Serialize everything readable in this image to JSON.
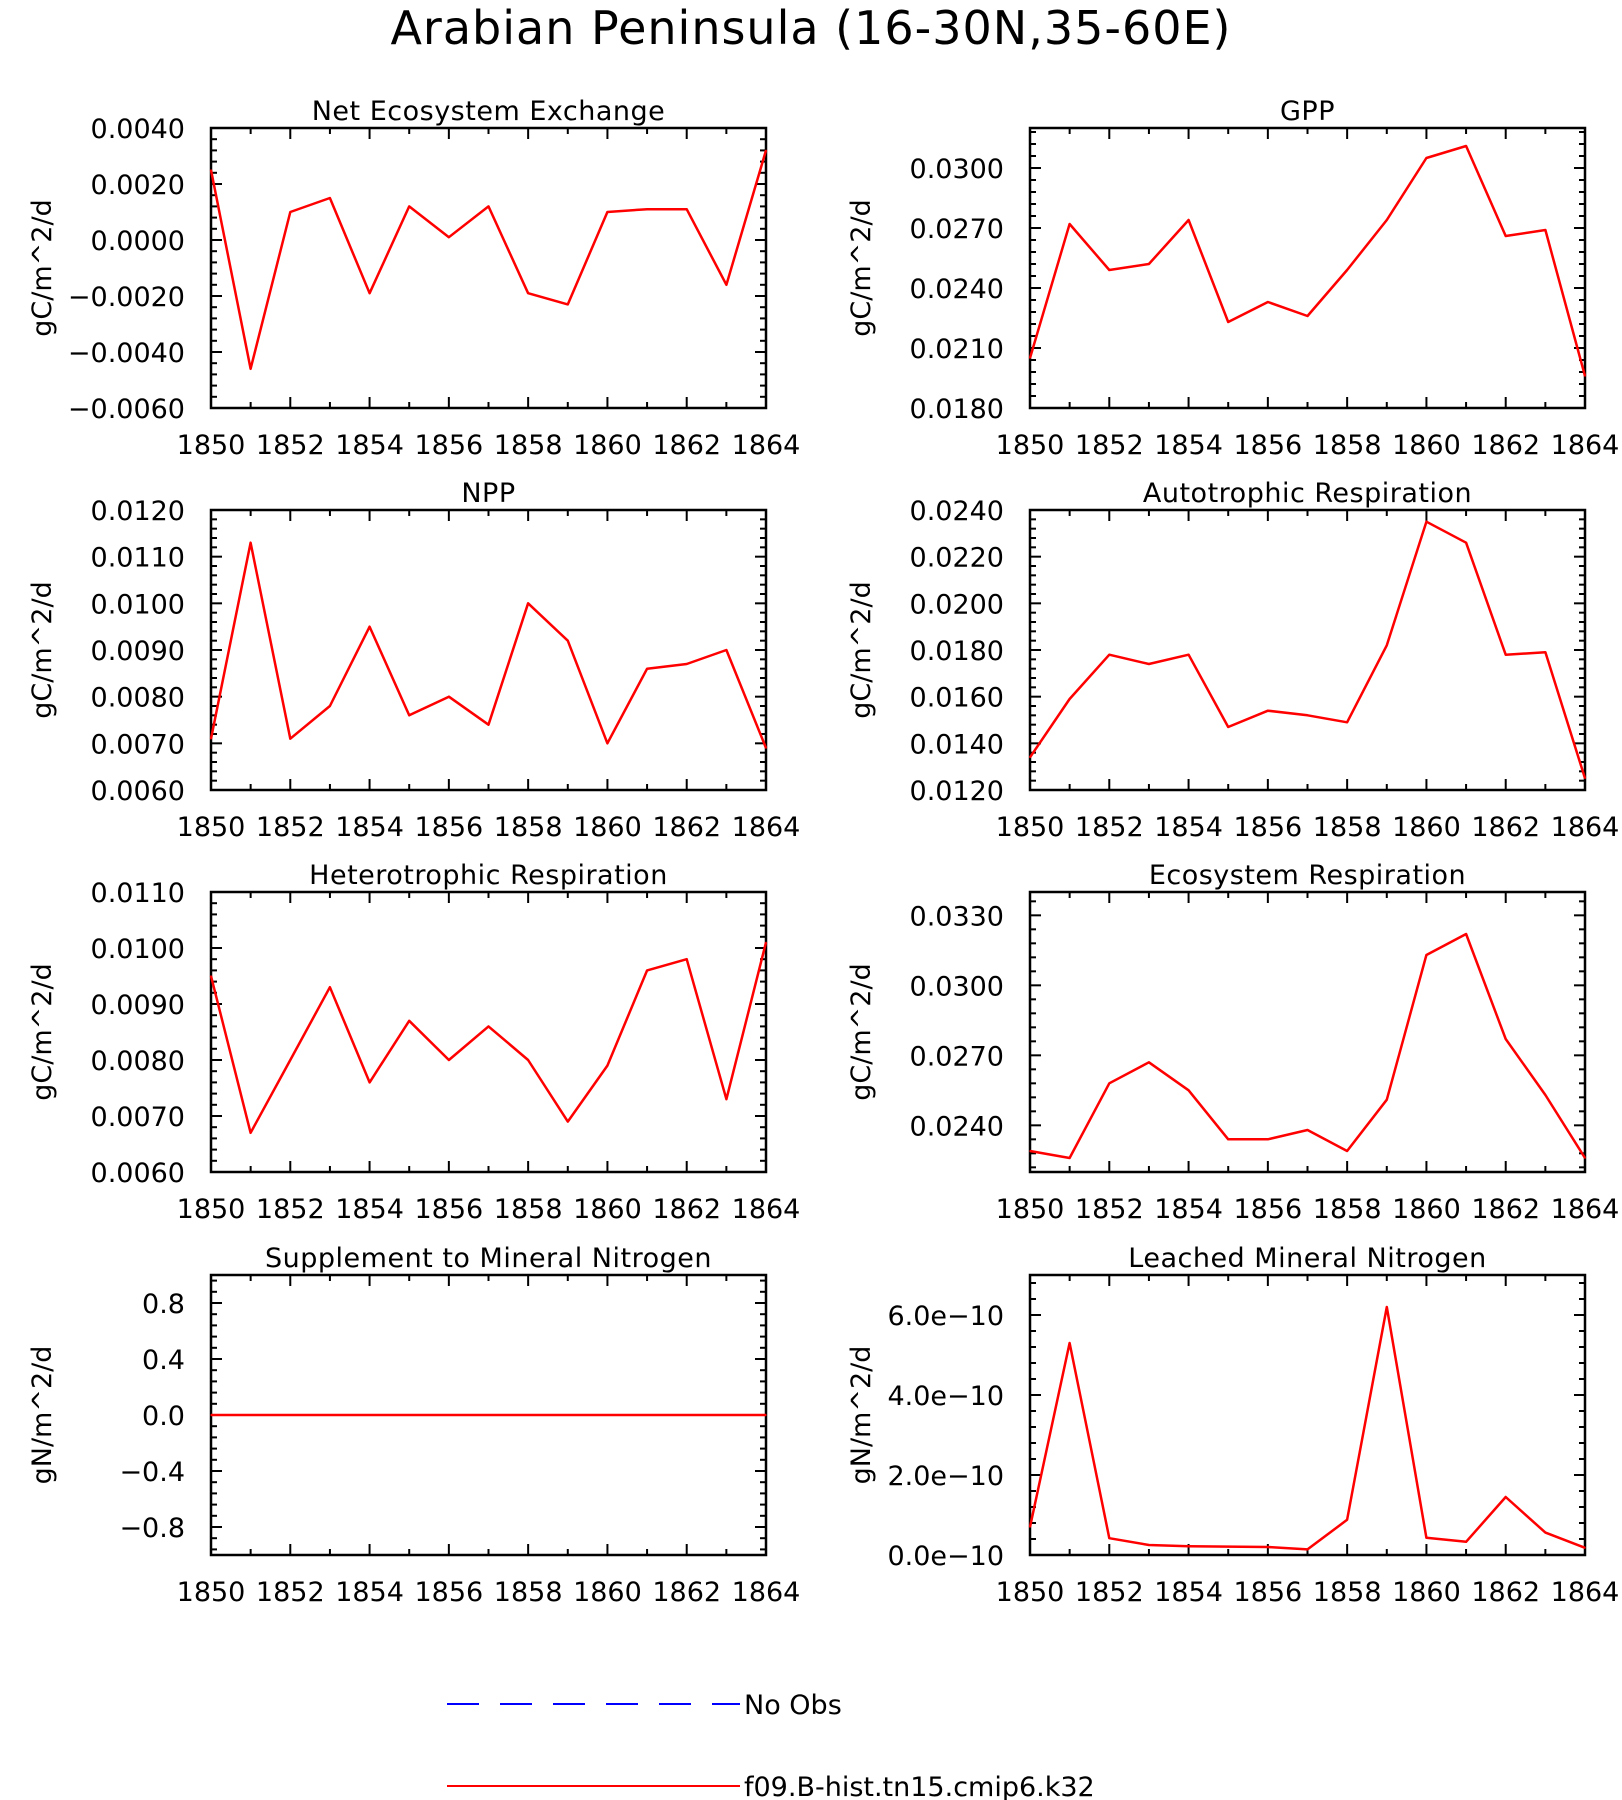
{
  "title": "Arabian Peninsula (16-30N,35-60E)",
  "colors": {
    "model": "#ff0000",
    "obs": "#0000ff",
    "axis": "#000000"
  },
  "legend": [
    {
      "label": "No Obs",
      "color": "#0000ff",
      "style": "dashed"
    },
    {
      "label": "f09.B-hist.tn15.cmip6.k32",
      "color": "#ff0000",
      "style": "solid"
    }
  ],
  "chart_data": [
    {
      "type": "line",
      "title": "Net Ecosystem Exchange",
      "ylabel": "gC/m^2/d",
      "xlim": [
        1850,
        1864
      ],
      "ylim": [
        -0.006,
        0.004
      ],
      "xticks": [
        "1850",
        "1852",
        "1854",
        "1856",
        "1858",
        "1860",
        "1862",
        "1864"
      ],
      "yticks": [
        "0.0040",
        "0.0020",
        "0.0000",
        "-0.0020",
        "-0.0040",
        "-0.0060"
      ],
      "x": [
        1850,
        1851,
        1852,
        1853,
        1854,
        1855,
        1856,
        1857,
        1858,
        1859,
        1860,
        1861,
        1862,
        1863,
        1864
      ],
      "series": [
        {
          "name": "f09.B-hist.tn15.cmip6.k32",
          "values": [
            0.0025,
            -0.0046,
            0.001,
            0.0015,
            -0.0019,
            0.0012,
            0.0001,
            0.0012,
            -0.0019,
            -0.0023,
            0.001,
            0.0011,
            0.0011,
            -0.0016,
            0.0032
          ]
        }
      ]
    },
    {
      "type": "line",
      "title": "GPP",
      "ylabel": "gC/m^2/d",
      "xlim": [
        1850,
        1864
      ],
      "ylim": [
        0.018,
        0.032
      ],
      "xticks": [
        "1850",
        "1852",
        "1854",
        "1856",
        "1858",
        "1860",
        "1862",
        "1864"
      ],
      "yticks": [
        "0.0300",
        "0.0270",
        "0.0240",
        "0.0210",
        "0.0180"
      ],
      "x": [
        1850,
        1851,
        1852,
        1853,
        1854,
        1855,
        1856,
        1857,
        1858,
        1859,
        1860,
        1861,
        1862,
        1863,
        1864
      ],
      "series": [
        {
          "name": "f09.B-hist.tn15.cmip6.k32",
          "values": [
            0.0205,
            0.0272,
            0.0249,
            0.0252,
            0.0274,
            0.0223,
            0.0233,
            0.0226,
            0.0249,
            0.0274,
            0.0305,
            0.0311,
            0.0266,
            0.0269,
            0.0196
          ]
        }
      ]
    },
    {
      "type": "line",
      "title": "NPP",
      "ylabel": "gC/m^2/d",
      "xlim": [
        1850,
        1864
      ],
      "ylim": [
        0.006,
        0.012
      ],
      "xticks": [
        "1850",
        "1852",
        "1854",
        "1856",
        "1858",
        "1860",
        "1862",
        "1864"
      ],
      "yticks": [
        "0.0120",
        "0.0110",
        "0.0100",
        "0.0090",
        "0.0080",
        "0.0070",
        "0.0060"
      ],
      "x": [
        1850,
        1851,
        1852,
        1853,
        1854,
        1855,
        1856,
        1857,
        1858,
        1859,
        1860,
        1861,
        1862,
        1863,
        1864
      ],
      "series": [
        {
          "name": "f09.B-hist.tn15.cmip6.k32",
          "values": [
            0.0071,
            0.0113,
            0.0071,
            0.0078,
            0.0095,
            0.0076,
            0.008,
            0.0074,
            0.01,
            0.0092,
            0.007,
            0.0086,
            0.0087,
            0.009,
            0.0069
          ]
        }
      ]
    },
    {
      "type": "line",
      "title": "Autotrophic Respiration",
      "ylabel": "gC/m^2/d",
      "xlim": [
        1850,
        1864
      ],
      "ylim": [
        0.012,
        0.024
      ],
      "xticks": [
        "1850",
        "1852",
        "1854",
        "1856",
        "1858",
        "1860",
        "1862",
        "1864"
      ],
      "yticks": [
        "0.0240",
        "0.0220",
        "0.0200",
        "0.0180",
        "0.0160",
        "0.0140",
        "0.0120"
      ],
      "x": [
        1850,
        1851,
        1852,
        1853,
        1854,
        1855,
        1856,
        1857,
        1858,
        1859,
        1860,
        1861,
        1862,
        1863,
        1864
      ],
      "series": [
        {
          "name": "f09.B-hist.tn15.cmip6.k32",
          "values": [
            0.0134,
            0.0159,
            0.0178,
            0.0174,
            0.0178,
            0.0147,
            0.0154,
            0.0152,
            0.0149,
            0.0182,
            0.0235,
            0.0226,
            0.0178,
            0.0179,
            0.0125
          ]
        }
      ]
    },
    {
      "type": "line",
      "title": "Heterotrophic Respiration",
      "ylabel": "gC/m^2/d",
      "xlim": [
        1850,
        1864
      ],
      "ylim": [
        0.006,
        0.011
      ],
      "xticks": [
        "1850",
        "1852",
        "1854",
        "1856",
        "1858",
        "1860",
        "1862",
        "1864"
      ],
      "yticks": [
        "0.0110",
        "0.0100",
        "0.0090",
        "0.0080",
        "0.0070",
        "0.0060"
      ],
      "x": [
        1850,
        1851,
        1852,
        1853,
        1854,
        1855,
        1856,
        1857,
        1858,
        1859,
        1860,
        1861,
        1862,
        1863,
        1864
      ],
      "series": [
        {
          "name": "f09.B-hist.tn15.cmip6.k32",
          "values": [
            0.0095,
            0.0067,
            0.008,
            0.0093,
            0.0076,
            0.0087,
            0.008,
            0.0086,
            0.008,
            0.0069,
            0.0079,
            0.0096,
            0.0098,
            0.0073,
            0.0101
          ]
        }
      ]
    },
    {
      "type": "line",
      "title": "Ecosystem Respiration",
      "ylabel": "gC/m^2/d",
      "xlim": [
        1850,
        1864
      ],
      "ylim": [
        0.022,
        0.034
      ],
      "xticks": [
        "1850",
        "1852",
        "1854",
        "1856",
        "1858",
        "1860",
        "1862",
        "1864"
      ],
      "yticks": [
        "0.0330",
        "0.0300",
        "0.0270",
        "0.0240"
      ],
      "x": [
        1850,
        1851,
        1852,
        1853,
        1854,
        1855,
        1856,
        1857,
        1858,
        1859,
        1860,
        1861,
        1862,
        1863,
        1864
      ],
      "series": [
        {
          "name": "f09.B-hist.tn15.cmip6.k32",
          "values": [
            0.0229,
            0.0226,
            0.0258,
            0.0267,
            0.0255,
            0.0234,
            0.0234,
            0.0238,
            0.0229,
            0.0251,
            0.0313,
            0.0322,
            0.0277,
            0.0253,
            0.0226
          ]
        }
      ]
    },
    {
      "type": "line",
      "title": "Supplement to Mineral Nitrogen",
      "ylabel": "gN/m^2/d",
      "xlim": [
        1850,
        1864
      ],
      "ylim": [
        -1.0,
        1.0
      ],
      "xticks": [
        "1850",
        "1852",
        "1854",
        "1856",
        "1858",
        "1860",
        "1862",
        "1864"
      ],
      "yticks": [
        "0.8",
        "0.4",
        "0.0",
        "-0.4",
        "-0.8"
      ],
      "x": [
        1850,
        1851,
        1852,
        1853,
        1854,
        1855,
        1856,
        1857,
        1858,
        1859,
        1860,
        1861,
        1862,
        1863,
        1864
      ],
      "series": [
        {
          "name": "f09.B-hist.tn15.cmip6.k32",
          "values": [
            0,
            0,
            0,
            0,
            0,
            0,
            0,
            0,
            0,
            0,
            0,
            0,
            0,
            0,
            0
          ]
        }
      ]
    },
    {
      "type": "line",
      "title": "Leached Mineral Nitrogen",
      "ylabel": "gN/m^2/d",
      "xlim": [
        1850,
        1864
      ],
      "ylim": [
        0,
        7e-10
      ],
      "xticks": [
        "1850",
        "1852",
        "1854",
        "1856",
        "1858",
        "1860",
        "1862",
        "1864"
      ],
      "yticks": [
        "6.0e-10",
        "4.0e-10",
        "2.0e-10",
        "0.0e-10"
      ],
      "x": [
        1850,
        1851,
        1852,
        1853,
        1854,
        1855,
        1856,
        1857,
        1858,
        1859,
        1860,
        1861,
        1862,
        1863,
        1864
      ],
      "series": [
        {
          "name": "f09.B-hist.tn15.cmip6.k32",
          "values": [
            7e-11,
            5.3e-10,
            4.2e-11,
            2.5e-11,
            2.2e-11,
            2.1e-11,
            2e-11,
            1.4e-11,
            8.8e-11,
            6.2e-10,
            4.3e-11,
            3.3e-11,
            1.45e-10,
            5.6e-11,
            1.8e-11
          ]
        }
      ]
    }
  ]
}
